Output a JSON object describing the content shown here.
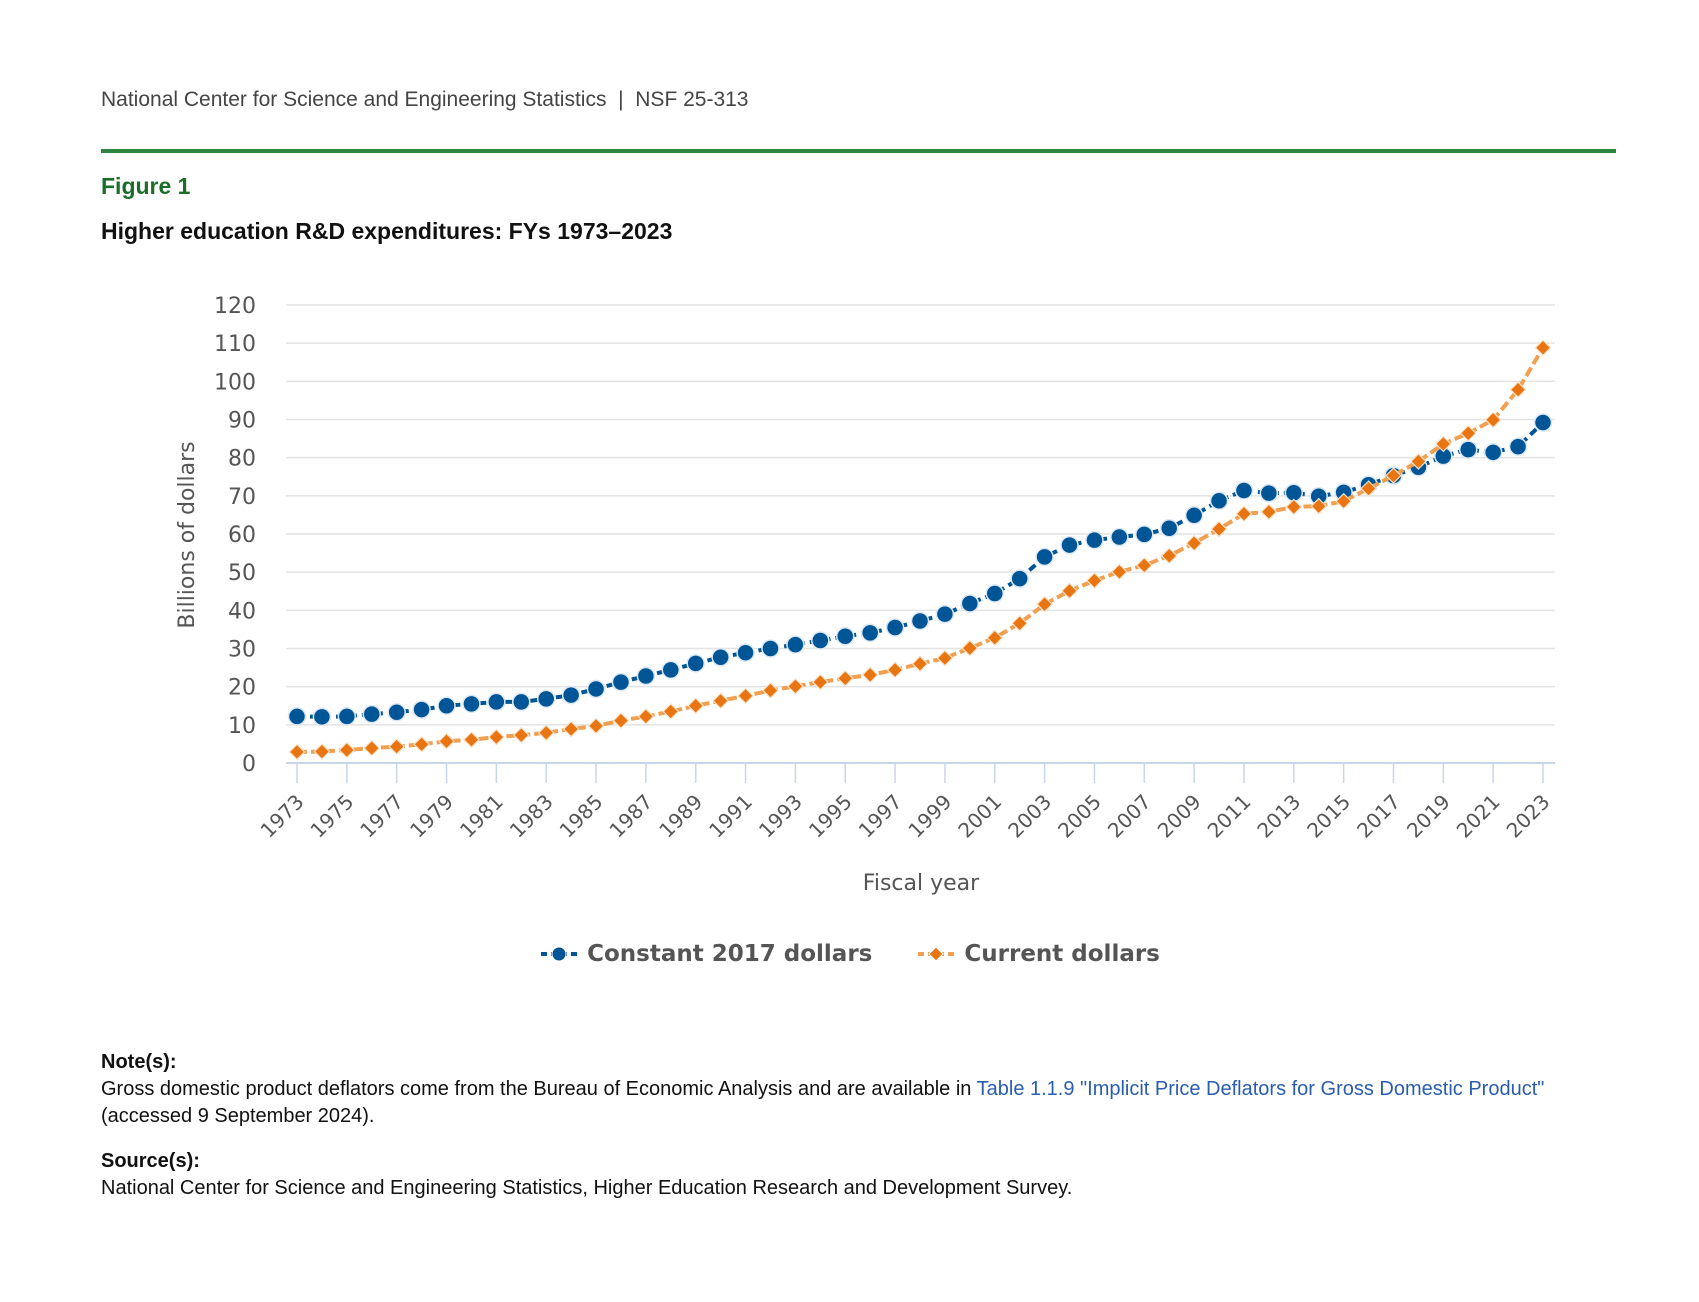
{
  "header": {
    "org": "National Center for Science and Engineering Statistics",
    "separator": "|",
    "report_id": "NSF 25-313"
  },
  "figure": {
    "label": "Figure 1",
    "title": "Higher education R&D expenditures: FYs 1973–2023"
  },
  "colors": {
    "rule": "#2e8540",
    "figure_label": "#1a6e2a",
    "constant": "#005596",
    "current": "#e87511",
    "current_line": "#f0a050",
    "grid": "#e3e3e3",
    "axis": "#c8d6ec",
    "link": "#2a5db0"
  },
  "chart_data": {
    "type": "line",
    "title": "Higher education R&D expenditures: FYs 1973–2023",
    "xlabel": "Fiscal year",
    "ylabel": "Billions of dollars",
    "ylim": [
      0,
      120
    ],
    "yticks": [
      0,
      10,
      20,
      30,
      40,
      50,
      60,
      70,
      80,
      90,
      100,
      110,
      120
    ],
    "grid": true,
    "legend_position": "bottom-center",
    "x": [
      1973,
      1974,
      1975,
      1976,
      1977,
      1978,
      1979,
      1980,
      1981,
      1982,
      1983,
      1984,
      1985,
      1986,
      1987,
      1988,
      1989,
      1990,
      1991,
      1992,
      1993,
      1994,
      1995,
      1996,
      1997,
      1998,
      1999,
      2000,
      2001,
      2002,
      2003,
      2004,
      2005,
      2006,
      2007,
      2008,
      2009,
      2010,
      2011,
      2012,
      2013,
      2014,
      2015,
      2016,
      2017,
      2018,
      2019,
      2020,
      2021,
      2022,
      2023
    ],
    "xtick_labels": [
      "1973",
      "1975",
      "1977",
      "1979",
      "1981",
      "1983",
      "1985",
      "1987",
      "1989",
      "1991",
      "1993",
      "1995",
      "1997",
      "1999",
      "2001",
      "2003",
      "2005",
      "2007",
      "2009",
      "2011",
      "2013",
      "2015",
      "2017",
      "2019",
      "2021",
      "2023"
    ],
    "series": [
      {
        "name": "Constant 2017 dollars",
        "marker": "circle",
        "values": [
          12.2,
          12.1,
          12.2,
          12.8,
          13.3,
          14.0,
          15.0,
          15.5,
          16.0,
          16.0,
          16.8,
          17.8,
          19.4,
          21.2,
          22.8,
          24.4,
          26.1,
          27.7,
          28.9,
          30.0,
          31.0,
          32.1,
          33.2,
          34.1,
          35.5,
          37.2,
          39.0,
          41.8,
          44.4,
          48.3,
          54.0,
          57.1,
          58.4,
          59.2,
          59.9,
          61.5,
          64.9,
          68.7,
          71.4,
          70.7,
          70.8,
          69.9,
          70.9,
          72.9,
          75.3,
          77.5,
          80.4,
          82.1,
          81.4,
          82.9,
          89.2
        ]
      },
      {
        "name": "Current dollars",
        "marker": "diamond",
        "values": [
          2.9,
          3.0,
          3.4,
          3.9,
          4.3,
          4.9,
          5.7,
          6.1,
          6.8,
          7.3,
          7.9,
          8.9,
          9.7,
          11.1,
          12.2,
          13.5,
          15.0,
          16.3,
          17.6,
          19.0,
          20.1,
          21.2,
          22.2,
          23.1,
          24.4,
          26.0,
          27.5,
          30.1,
          32.8,
          36.6,
          41.6,
          45.1,
          47.8,
          50.1,
          51.8,
          54.3,
          57.6,
          61.3,
          65.3,
          65.8,
          67.1,
          67.3,
          68.6,
          71.9,
          75.3,
          79.0,
          83.6,
          86.4,
          89.9,
          97.8,
          108.8
        ]
      }
    ]
  },
  "legend": {
    "items": [
      "Constant 2017 dollars",
      "Current dollars"
    ]
  },
  "notes": {
    "note_head": "Note(s):",
    "note_text_before": "Gross domestic product deflators come from the Bureau of Economic Analysis and are available in ",
    "note_link": "Table 1.1.9 \"Implicit Price Deflators for Gross Domestic Product\"",
    "note_text_after": " (accessed 9 September 2024).",
    "source_head": "Source(s):",
    "source_text": "National Center for Science and Engineering Statistics, Higher Education Research and Development Survey."
  }
}
